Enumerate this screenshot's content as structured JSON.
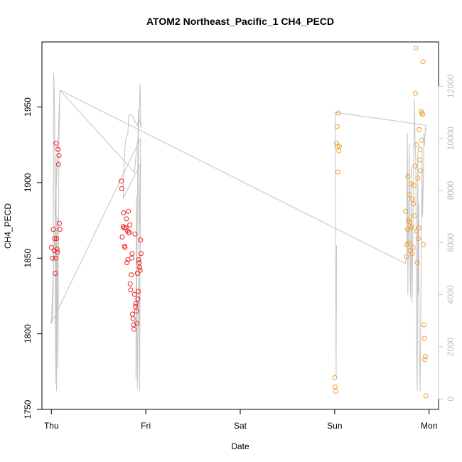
{
  "chart_data": {
    "type": "scatter",
    "title": "ATOM2 Northeast_Pacific_1 CH4_PECD",
    "xlabel": "Date",
    "ylabel": "CH4_PECD",
    "x_unit": "days since Thu 00:00",
    "xlim": [
      -0.1,
      4.1
    ],
    "ylim": [
      1750,
      1993
    ],
    "x_ticks": [
      {
        "value": 0,
        "label": "Thu"
      },
      {
        "value": 1,
        "label": "Fri"
      },
      {
        "value": 2,
        "label": "Sat"
      },
      {
        "value": 3,
        "label": "Sun"
      },
      {
        "value": 4,
        "label": "Mon"
      }
    ],
    "y_ticks": [
      1750,
      1800,
      1850,
      1900,
      1950
    ],
    "y2_ticks": [
      0,
      2000,
      4000,
      6000,
      8000,
      10000,
      12000
    ],
    "y2lim": [
      -400,
      13700
    ],
    "colors": {
      "red": "#ee2222",
      "orange": "#f0a030",
      "altitude": "#c4c4c4"
    },
    "series": [
      {
        "color": "red",
        "points": [
          [
            0.0,
            1857
          ],
          [
            0.01,
            1850
          ],
          [
            0.02,
            1869
          ],
          [
            0.03,
            1855
          ],
          [
            0.035,
            1863
          ],
          [
            0.04,
            1840
          ],
          [
            0.045,
            1850
          ],
          [
            0.05,
            1926
          ],
          [
            0.055,
            1863
          ],
          [
            0.06,
            1856
          ],
          [
            0.065,
            1854
          ],
          [
            0.07,
            1922
          ],
          [
            0.075,
            1912
          ],
          [
            0.08,
            1918
          ],
          [
            0.085,
            1873
          ],
          [
            0.09,
            1869
          ],
          [
            0.74,
            1901
          ],
          [
            0.745,
            1896
          ],
          [
            0.75,
            1864
          ],
          [
            0.76,
            1871
          ],
          [
            0.765,
            1880
          ],
          [
            0.77,
            1870
          ],
          [
            0.775,
            1858
          ],
          [
            0.78,
            1857
          ],
          [
            0.79,
            1870
          ],
          [
            0.795,
            1876
          ],
          [
            0.8,
            1847
          ],
          [
            0.805,
            1868
          ],
          [
            0.81,
            1849
          ],
          [
            0.815,
            1881
          ],
          [
            0.82,
            1867
          ],
          [
            0.825,
            1867
          ],
          [
            0.83,
            1872
          ],
          [
            0.835,
            1833
          ],
          [
            0.84,
            1829
          ],
          [
            0.845,
            1839
          ],
          [
            0.85,
            1850
          ],
          [
            0.855,
            1853
          ],
          [
            0.86,
            1813
          ],
          [
            0.865,
            1810
          ],
          [
            0.87,
            1806
          ],
          [
            0.875,
            1803
          ],
          [
            0.88,
            1826
          ],
          [
            0.885,
            1866
          ],
          [
            0.89,
            1818
          ],
          [
            0.895,
            1820
          ],
          [
            0.9,
            1815
          ],
          [
            0.905,
            1807
          ],
          [
            0.91,
            1840
          ],
          [
            0.915,
            1823
          ],
          [
            0.92,
            1828
          ],
          [
            0.925,
            1849
          ],
          [
            0.93,
            1847
          ],
          [
            0.935,
            1844
          ],
          [
            0.94,
            1842
          ],
          [
            0.945,
            1862
          ],
          [
            0.95,
            1853
          ]
        ]
      },
      {
        "color": "orange",
        "points": [
          [
            3.0,
            1771
          ],
          [
            3.005,
            1765
          ],
          [
            3.01,
            1762
          ],
          [
            3.02,
            1926
          ],
          [
            3.025,
            1937
          ],
          [
            3.03,
            1924
          ],
          [
            3.035,
            1907
          ],
          [
            3.04,
            1946
          ],
          [
            3.045,
            1921
          ],
          [
            3.05,
            1924
          ],
          [
            3.75,
            1881
          ],
          [
            3.76,
            1851
          ],
          [
            3.765,
            1859
          ],
          [
            3.77,
            1869
          ],
          [
            3.775,
            1904
          ],
          [
            3.78,
            1875
          ],
          [
            3.785,
            1860
          ],
          [
            3.79,
            1892
          ],
          [
            3.795,
            1874
          ],
          [
            3.8,
            1855
          ],
          [
            3.805,
            1870
          ],
          [
            3.81,
            1899
          ],
          [
            3.815,
            1871
          ],
          [
            3.82,
            1853
          ],
          [
            3.825,
            1889
          ],
          [
            3.83,
            1857
          ],
          [
            3.835,
            1886
          ],
          [
            3.84,
            1898
          ],
          [
            3.845,
            1878
          ],
          [
            3.85,
            1911
          ],
          [
            3.855,
            1959
          ],
          [
            3.86,
            1989
          ],
          [
            3.865,
            1925
          ],
          [
            3.87,
            1868
          ],
          [
            3.875,
            1847
          ],
          [
            3.88,
            1903
          ],
          [
            3.885,
            1863
          ],
          [
            3.89,
            1870
          ],
          [
            3.895,
            1935
          ],
          [
            3.9,
            1915
          ],
          [
            3.905,
            1922
          ],
          [
            3.91,
            1908
          ],
          [
            3.915,
            1947
          ],
          [
            3.92,
            1928
          ],
          [
            3.925,
            1946
          ],
          [
            3.93,
            1945
          ],
          [
            3.935,
            1980
          ],
          [
            3.94,
            1859
          ],
          [
            3.945,
            1806
          ],
          [
            3.95,
            1797
          ],
          [
            3.955,
            1783
          ],
          [
            3.96,
            1785
          ],
          [
            3.965,
            1759
          ]
        ]
      }
    ],
    "altitude_trace": [
      [
        -0.01,
        2900
      ],
      [
        0.01,
        3100
      ],
      [
        0.02,
        4200
      ],
      [
        0.025,
        12500
      ],
      [
        0.035,
        11000
      ],
      [
        0.045,
        600
      ],
      [
        0.05,
        9300
      ],
      [
        0.055,
        300
      ],
      [
        0.06,
        7000
      ],
      [
        0.07,
        1200
      ],
      [
        0.08,
        9800
      ],
      [
        0.09,
        11850
      ],
      [
        0.88,
        8700
      ],
      [
        0.9,
        9500
      ],
      [
        0.92,
        10100
      ],
      [
        0.93,
        10800
      ],
      [
        0.94,
        12100
      ],
      [
        0.945,
        11000
      ],
      [
        0.95,
        10400
      ],
      [
        0.93,
        10800
      ],
      [
        0.91,
        10500
      ],
      [
        0.88,
        10700
      ],
      [
        0.85,
        10900
      ],
      [
        0.82,
        10900
      ],
      [
        0.815,
        10600
      ],
      [
        0.81,
        10200
      ],
      [
        0.79,
        10000
      ],
      [
        0.78,
        9700
      ],
      [
        0.775,
        9300
      ],
      [
        0.77,
        9000
      ],
      [
        0.765,
        8700
      ],
      [
        0.76,
        7700
      ],
      [
        0.94,
        9000
      ],
      [
        0.91,
        400
      ],
      [
        0.9,
        7800
      ],
      [
        0.895,
        800
      ],
      [
        0.92,
        11100
      ],
      [
        0.935,
        300
      ],
      [
        0.945,
        10000
      ],
      [
        0.0,
        2900
      ],
      [
        0.09,
        11850
      ],
      [
        3.75,
        5200
      ],
      [
        3.76,
        5500
      ],
      [
        3.77,
        10200
      ],
      [
        3.775,
        4000
      ],
      [
        3.79,
        9800
      ],
      [
        3.8,
        4500
      ],
      [
        3.805,
        3900
      ],
      [
        3.81,
        8900
      ],
      [
        3.82,
        3700
      ],
      [
        3.84,
        10100
      ],
      [
        3.845,
        11500
      ],
      [
        3.85,
        10000
      ],
      [
        3.86,
        9000
      ],
      [
        3.865,
        2500
      ],
      [
        3.87,
        1500
      ],
      [
        3.875,
        300
      ],
      [
        3.88,
        9500
      ],
      [
        3.885,
        4000
      ],
      [
        3.89,
        7500
      ],
      [
        3.895,
        2000
      ],
      [
        3.9,
        1500
      ],
      [
        3.905,
        300
      ],
      [
        3.91,
        2600
      ],
      [
        3.92,
        6300
      ],
      [
        3.925,
        9500
      ],
      [
        3.93,
        7000
      ],
      [
        3.94,
        8400
      ],
      [
        3.945,
        10200
      ],
      [
        3.95,
        9700
      ],
      [
        3.96,
        10400
      ],
      [
        3.965,
        10300
      ],
      [
        3.965,
        10500
      ],
      [
        3.0,
        11000
      ],
      [
        3.005,
        10900
      ],
      [
        3.01,
        5200
      ],
      [
        3.015,
        800
      ],
      [
        3.02,
        5900
      ]
    ]
  }
}
